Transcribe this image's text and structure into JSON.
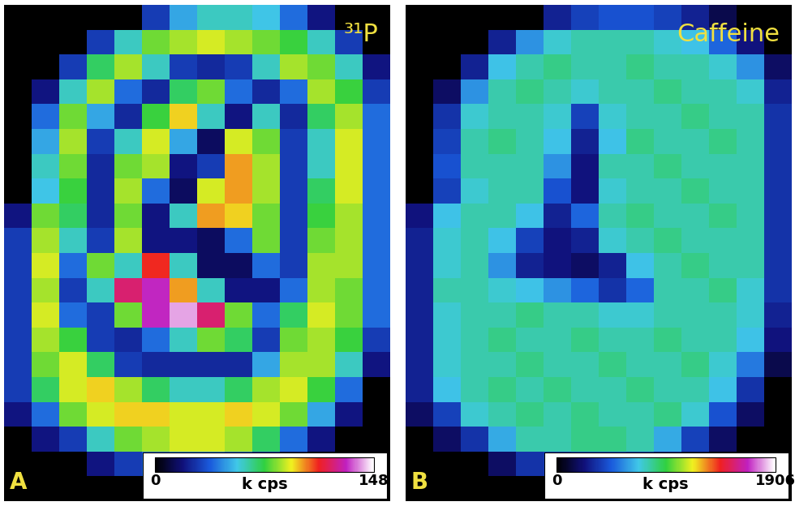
{
  "chart_data": [
    {
      "type": "heatmap",
      "title": "³¹P",
      "panel": "A",
      "tick_labels": false,
      "colorbar": {
        "range": [
          0,
          148
        ],
        "ticks": [
          0,
          148
        ],
        "label": "k cps"
      },
      "cells": [
        [
          0,
          0,
          0,
          0,
          0,
          30,
          50,
          60,
          60,
          55,
          40,
          20,
          0,
          0
        ],
        [
          0,
          0,
          0,
          30,
          60,
          80,
          85,
          90,
          85,
          80,
          75,
          60,
          30,
          0
        ],
        [
          0,
          0,
          30,
          70,
          85,
          60,
          30,
          25,
          30,
          60,
          85,
          80,
          60,
          20
        ],
        [
          0,
          20,
          60,
          85,
          40,
          25,
          70,
          80,
          40,
          25,
          40,
          85,
          75,
          30
        ],
        [
          0,
          40,
          80,
          50,
          25,
          75,
          95,
          60,
          20,
          60,
          25,
          70,
          85,
          40
        ],
        [
          0,
          50,
          85,
          30,
          60,
          90,
          50,
          15,
          90,
          80,
          30,
          60,
          90,
          40
        ],
        [
          0,
          60,
          80,
          25,
          80,
          85,
          20,
          30,
          100,
          85,
          30,
          60,
          90,
          40
        ],
        [
          0,
          55,
          75,
          25,
          85,
          40,
          15,
          90,
          100,
          85,
          30,
          70,
          90,
          40
        ],
        [
          20,
          80,
          70,
          25,
          80,
          20,
          60,
          100,
          95,
          80,
          30,
          75,
          85,
          40
        ],
        [
          30,
          85,
          60,
          30,
          85,
          20,
          20,
          15,
          40,
          80,
          30,
          80,
          85,
          40
        ],
        [
          30,
          90,
          40,
          80,
          60,
          110,
          60,
          15,
          15,
          40,
          30,
          85,
          85,
          40
        ],
        [
          30,
          85,
          30,
          60,
          120,
          130,
          100,
          60,
          20,
          20,
          40,
          85,
          80,
          40
        ],
        [
          30,
          90,
          40,
          30,
          80,
          130,
          140,
          120,
          80,
          40,
          70,
          90,
          80,
          40
        ],
        [
          30,
          85,
          75,
          30,
          25,
          40,
          60,
          80,
          70,
          30,
          80,
          85,
          75,
          30
        ],
        [
          30,
          80,
          90,
          70,
          30,
          25,
          25,
          25,
          25,
          50,
          85,
          85,
          60,
          20
        ],
        [
          30,
          70,
          90,
          95,
          85,
          70,
          60,
          60,
          70,
          85,
          90,
          75,
          40,
          0
        ],
        [
          20,
          40,
          80,
          90,
          95,
          95,
          90,
          90,
          95,
          90,
          80,
          50,
          20,
          0
        ],
        [
          0,
          20,
          30,
          60,
          80,
          85,
          90,
          90,
          85,
          70,
          40,
          20,
          0,
          0
        ],
        [
          0,
          0,
          0,
          20,
          30,
          40,
          45,
          45,
          40,
          30,
          15,
          0,
          0,
          0
        ],
        [
          0,
          0,
          0,
          0,
          0,
          0,
          0,
          0,
          0,
          0,
          0,
          0,
          0,
          0
        ]
      ]
    },
    {
      "type": "heatmap",
      "title": "Caffeine",
      "panel": "B",
      "tick_labels": false,
      "colorbar": {
        "range": [
          0,
          1906
        ],
        "ticks": [
          0,
          1906
        ],
        "label": "k cps"
      },
      "cells": [
        [
          0,
          0,
          0,
          0,
          0,
          300,
          400,
          450,
          450,
          400,
          300,
          150,
          0,
          0
        ],
        [
          0,
          0,
          0,
          300,
          600,
          750,
          800,
          800,
          800,
          750,
          700,
          500,
          250,
          0
        ],
        [
          0,
          0,
          300,
          700,
          800,
          850,
          800,
          800,
          850,
          800,
          800,
          750,
          600,
          200
        ],
        [
          0,
          200,
          600,
          800,
          850,
          800,
          750,
          800,
          800,
          850,
          800,
          800,
          750,
          300
        ],
        [
          0,
          350,
          750,
          800,
          800,
          750,
          400,
          750,
          800,
          800,
          850,
          800,
          800,
          350
        ],
        [
          0,
          400,
          800,
          850,
          800,
          700,
          300,
          700,
          850,
          800,
          800,
          850,
          800,
          350
        ],
        [
          0,
          450,
          800,
          800,
          800,
          600,
          250,
          800,
          800,
          850,
          800,
          800,
          800,
          350
        ],
        [
          0,
          400,
          750,
          800,
          800,
          450,
          250,
          750,
          800,
          800,
          850,
          800,
          800,
          350
        ],
        [
          250,
          700,
          800,
          800,
          700,
          300,
          500,
          800,
          850,
          800,
          800,
          850,
          800,
          350
        ],
        [
          300,
          750,
          800,
          700,
          400,
          250,
          300,
          750,
          800,
          850,
          800,
          800,
          800,
          350
        ],
        [
          300,
          750,
          800,
          600,
          300,
          250,
          200,
          300,
          700,
          800,
          850,
          800,
          800,
          350
        ],
        [
          300,
          800,
          800,
          750,
          700,
          600,
          500,
          350,
          500,
          800,
          800,
          850,
          750,
          350
        ],
        [
          300,
          750,
          800,
          800,
          850,
          800,
          800,
          750,
          750,
          800,
          800,
          800,
          750,
          300
        ],
        [
          300,
          750,
          800,
          850,
          800,
          800,
          850,
          800,
          800,
          850,
          800,
          800,
          700,
          250
        ],
        [
          300,
          750,
          800,
          800,
          850,
          800,
          800,
          850,
          800,
          800,
          850,
          750,
          550,
          150
        ],
        [
          300,
          700,
          800,
          850,
          800,
          850,
          800,
          800,
          850,
          800,
          800,
          700,
          350,
          0
        ],
        [
          200,
          400,
          750,
          800,
          850,
          800,
          850,
          800,
          800,
          850,
          750,
          450,
          200,
          0
        ],
        [
          0,
          200,
          350,
          650,
          800,
          800,
          850,
          850,
          800,
          650,
          400,
          200,
          0,
          0
        ],
        [
          0,
          0,
          0,
          200,
          350,
          400,
          450,
          450,
          400,
          300,
          150,
          0,
          0,
          0
        ],
        [
          0,
          0,
          0,
          0,
          0,
          0,
          0,
          0,
          0,
          0,
          0,
          0,
          0,
          0
        ]
      ]
    }
  ]
}
